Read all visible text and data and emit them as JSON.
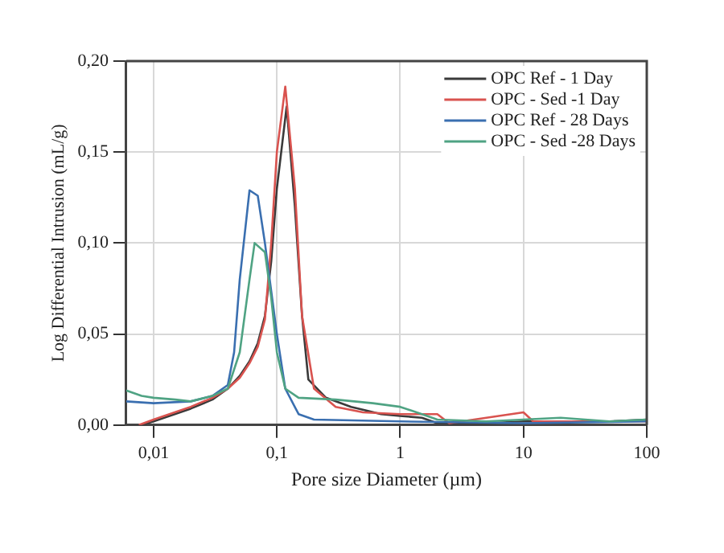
{
  "chart_data": {
    "type": "line",
    "xlabel": "Pore size Diameter (µm)",
    "ylabel": "Log Differential Intrusion (mL/g)",
    "log": "x",
    "grid": true,
    "legend": "top right",
    "marker": "none",
    "line_style": "solid",
    "xlim": [
      0.006,
      100
    ],
    "xticks": [
      {
        "value": 0.01,
        "label": "0,01"
      },
      {
        "value": 0.1,
        "label": "0,1"
      },
      1,
      10,
      100
    ],
    "ylim": [
      0,
      0.2
    ],
    "yticks": [
      {
        "value": 0,
        "label": "0,00"
      },
      {
        "value": 0.05,
        "label": "0,05"
      },
      {
        "value": 0.1,
        "label": "0,10"
      },
      {
        "value": 0.15,
        "label": "0,15"
      },
      {
        "value": 0.2,
        "label": "0,20"
      }
    ],
    "series": [
      {
        "name": "OPC Ref - 1 Day",
        "color": "#3a3a3a",
        "x": [
          0.008,
          0.01,
          0.02,
          0.03,
          0.04,
          0.05,
          0.06,
          0.07,
          0.08,
          0.09,
          0.1,
          0.12,
          0.14,
          0.16,
          0.18,
          0.25,
          0.4,
          0.7,
          1,
          1.5,
          2,
          5,
          10,
          20,
          50,
          100
        ],
        "values": [
          0,
          0.002,
          0.009,
          0.014,
          0.02,
          0.027,
          0.035,
          0.045,
          0.06,
          0.09,
          0.13,
          0.175,
          0.12,
          0.06,
          0.025,
          0.015,
          0.01,
          0.006,
          0.005,
          0.004,
          0.001,
          0.001,
          0.002,
          0.002,
          0.002,
          0.003
        ]
      },
      {
        "name": "OPC - Sed -1 Day",
        "color": "#d9534f",
        "x": [
          0.0076,
          0.01,
          0.02,
          0.03,
          0.04,
          0.05,
          0.06,
          0.07,
          0.08,
          0.09,
          0.1,
          0.117,
          0.14,
          0.16,
          0.2,
          0.3,
          0.5,
          1,
          2,
          2.5,
          10,
          12,
          30,
          100
        ],
        "values": [
          0,
          0.003,
          0.01,
          0.015,
          0.02,
          0.026,
          0.034,
          0.043,
          0.058,
          0.1,
          0.15,
          0.186,
          0.13,
          0.06,
          0.02,
          0.01,
          0.007,
          0.006,
          0.006,
          0.001,
          0.007,
          0.002,
          0.002,
          0.002
        ]
      },
      {
        "name": "OPC Ref - 28 Days",
        "color": "#3a6fb0",
        "x": [
          0.006,
          0.01,
          0.02,
          0.03,
          0.04,
          0.045,
          0.05,
          0.06,
          0.07,
          0.08,
          0.1,
          0.117,
          0.15,
          0.2,
          1,
          10,
          100
        ],
        "values": [
          0.013,
          0.012,
          0.013,
          0.016,
          0.022,
          0.04,
          0.08,
          0.129,
          0.126,
          0.1,
          0.05,
          0.02,
          0.006,
          0.003,
          0.002,
          0.001,
          0.002
        ]
      },
      {
        "name": "OPC - Sed -28 Days",
        "color": "#4fa383",
        "x": [
          0.006,
          0.008,
          0.01,
          0.015,
          0.02,
          0.03,
          0.04,
          0.05,
          0.06,
          0.066,
          0.08,
          0.09,
          0.1,
          0.117,
          0.15,
          0.3,
          0.6,
          1,
          1.5,
          2,
          5,
          10,
          20,
          50,
          100
        ],
        "values": [
          0.019,
          0.016,
          0.015,
          0.014,
          0.013,
          0.016,
          0.02,
          0.04,
          0.08,
          0.1,
          0.095,
          0.07,
          0.04,
          0.02,
          0.015,
          0.014,
          0.012,
          0.01,
          0.006,
          0.003,
          0.002,
          0.003,
          0.004,
          0.002,
          0.003
        ]
      }
    ]
  }
}
